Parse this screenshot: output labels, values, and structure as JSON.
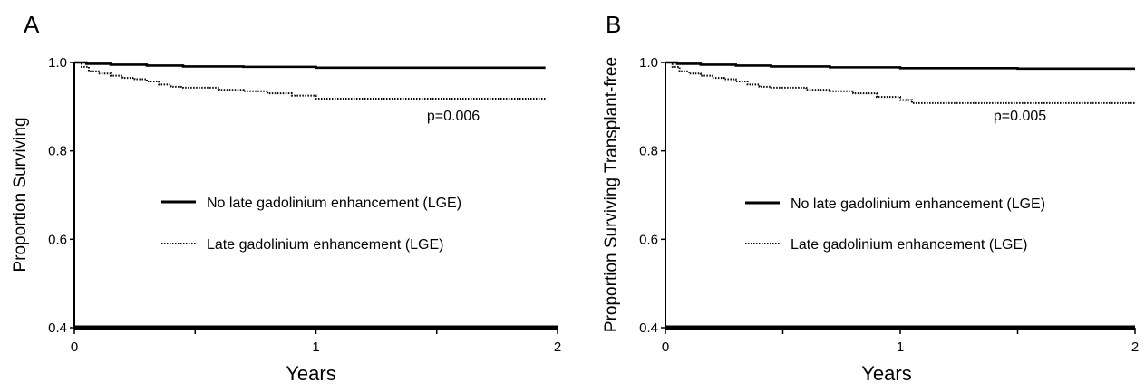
{
  "chart_data": [
    {
      "type": "line",
      "panel_label": "A",
      "xlabel": "Years",
      "ylabel": "Proportion Surviving",
      "xlim": [
        0,
        2
      ],
      "ylim": [
        0.4,
        1.0
      ],
      "x_ticks": [
        "0",
        "1",
        "2"
      ],
      "y_ticks": [
        "0.4",
        "0.6",
        "0.8",
        "1.0"
      ],
      "legend_position": "center",
      "annotation": "p=0.006",
      "series": [
        {
          "name": "No late gadolinium enhancement (LGE)",
          "style": "solid",
          "x": [
            0,
            0.05,
            0.15,
            0.3,
            0.45,
            0.7,
            1.0,
            1.5,
            1.95
          ],
          "y": [
            1.0,
            0.997,
            0.995,
            0.993,
            0.991,
            0.99,
            0.988,
            0.988,
            0.988
          ]
        },
        {
          "name": "Late gadolinium enhancement (LGE)",
          "style": "dotted",
          "x": [
            0,
            0.03,
            0.06,
            0.1,
            0.15,
            0.2,
            0.25,
            0.3,
            0.35,
            0.4,
            0.45,
            0.5,
            0.6,
            0.7,
            0.8,
            0.9,
            1.0,
            1.5,
            1.95
          ],
          "y": [
            1.0,
            0.99,
            0.98,
            0.975,
            0.97,
            0.965,
            0.962,
            0.957,
            0.95,
            0.945,
            0.943,
            0.943,
            0.938,
            0.935,
            0.93,
            0.925,
            0.918,
            0.918,
            0.918
          ]
        }
      ]
    },
    {
      "type": "line",
      "panel_label": "B",
      "xlabel": "Years",
      "ylabel": "Proportion Surviving Transplant-free",
      "xlim": [
        0,
        2
      ],
      "ylim": [
        0.4,
        1.0
      ],
      "x_ticks": [
        "0",
        "1",
        "2"
      ],
      "y_ticks": [
        "0.4",
        "0.6",
        "0.8",
        "1.0"
      ],
      "legend_position": "center",
      "annotation": "p=0.005",
      "series": [
        {
          "name": "No late gadolinium enhancement (LGE)",
          "style": "solid",
          "x": [
            0,
            0.05,
            0.15,
            0.3,
            0.45,
            0.7,
            1.0,
            1.5,
            2.0
          ],
          "y": [
            1.0,
            0.997,
            0.995,
            0.993,
            0.991,
            0.989,
            0.987,
            0.986,
            0.986
          ]
        },
        {
          "name": "Late gadolinium enhancement (LGE)",
          "style": "dotted",
          "x": [
            0,
            0.03,
            0.06,
            0.1,
            0.15,
            0.2,
            0.25,
            0.3,
            0.35,
            0.4,
            0.45,
            0.5,
            0.6,
            0.7,
            0.8,
            0.9,
            1.0,
            1.05,
            1.5,
            2.0
          ],
          "y": [
            1.0,
            0.99,
            0.98,
            0.975,
            0.97,
            0.965,
            0.962,
            0.957,
            0.95,
            0.945,
            0.943,
            0.943,
            0.938,
            0.935,
            0.93,
            0.922,
            0.915,
            0.908,
            0.908,
            0.908
          ]
        }
      ]
    }
  ]
}
